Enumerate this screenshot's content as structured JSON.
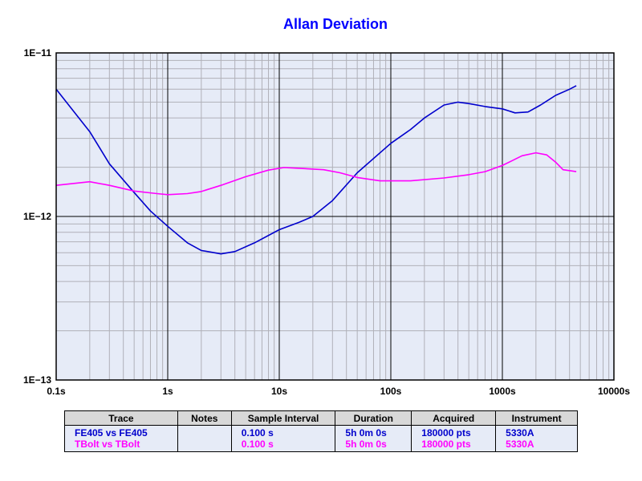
{
  "chart_data": {
    "type": "line",
    "title": "Allan Deviation",
    "title_color": "#0000ff",
    "x_scale": "log",
    "y_scale": "log",
    "xlim": [
      0.1,
      10000
    ],
    "ylim": [
      1e-13,
      1e-11
    ],
    "x_tick_values": [
      0.1,
      1,
      10,
      100,
      1000,
      10000
    ],
    "x_tick_labels": [
      "0.1s",
      "1s",
      "10s",
      "100s",
      "1000s",
      "10000s"
    ],
    "y_tick_values": [
      1e-13,
      1e-12,
      1e-11
    ],
    "y_tick_labels": [
      "1E−13",
      "1E−12",
      "1E−11"
    ],
    "grid": true,
    "plot_background": "#e6ebf7",
    "series": [
      {
        "name": "FE405 vs FE405",
        "color": "#0000cc",
        "points": [
          [
            0.1,
            6e-12
          ],
          [
            0.2,
            3.3e-12
          ],
          [
            0.3,
            2.1e-12
          ],
          [
            0.5,
            1.4e-12
          ],
          [
            0.7,
            1.08e-12
          ],
          [
            1.0,
            8.7e-13
          ],
          [
            1.5,
            6.9e-13
          ],
          [
            2.0,
            6.2e-13
          ],
          [
            3.0,
            5.9e-13
          ],
          [
            4.0,
            6.1e-13
          ],
          [
            6.0,
            6.9e-13
          ],
          [
            10.0,
            8.3e-13
          ],
          [
            15.0,
            9.2e-13
          ],
          [
            20.0,
            1e-12
          ],
          [
            30.0,
            1.25e-12
          ],
          [
            50.0,
            1.85e-12
          ],
          [
            100.0,
            2.8e-12
          ],
          [
            150.0,
            3.4e-12
          ],
          [
            200.0,
            4e-12
          ],
          [
            300.0,
            4.8e-12
          ],
          [
            400.0,
            5e-12
          ],
          [
            500.0,
            4.9e-12
          ],
          [
            700.0,
            4.7e-12
          ],
          [
            1000.0,
            4.55e-12
          ],
          [
            1300.0,
            4.3e-12
          ],
          [
            1700.0,
            4.35e-12
          ],
          [
            2200.0,
            4.8e-12
          ],
          [
            3000.0,
            5.5e-12
          ],
          [
            4000.0,
            6e-12
          ],
          [
            4600.0,
            6.3e-12
          ]
        ]
      },
      {
        "name": "TBolt vs TBolt",
        "color": "#ff00ff",
        "points": [
          [
            0.1,
            1.55e-12
          ],
          [
            0.2,
            1.63e-12
          ],
          [
            0.3,
            1.55e-12
          ],
          [
            0.5,
            1.43e-12
          ],
          [
            0.8,
            1.38e-12
          ],
          [
            1.0,
            1.36e-12
          ],
          [
            1.5,
            1.38e-12
          ],
          [
            2.0,
            1.42e-12
          ],
          [
            3.0,
            1.55e-12
          ],
          [
            5.0,
            1.75e-12
          ],
          [
            8.0,
            1.92e-12
          ],
          [
            11.0,
            1.99e-12
          ],
          [
            15.0,
            1.97e-12
          ],
          [
            25.0,
            1.93e-12
          ],
          [
            35.0,
            1.85e-12
          ],
          [
            50.0,
            1.73e-12
          ],
          [
            80.0,
            1.65e-12
          ],
          [
            150.0,
            1.65e-12
          ],
          [
            300.0,
            1.72e-12
          ],
          [
            500.0,
            1.8e-12
          ],
          [
            700.0,
            1.88e-12
          ],
          [
            1000.0,
            2.05e-12
          ],
          [
            1500.0,
            2.35e-12
          ],
          [
            2000.0,
            2.45e-12
          ],
          [
            2500.0,
            2.38e-12
          ],
          [
            3000.0,
            2.15e-12
          ],
          [
            3500.0,
            1.93e-12
          ],
          [
            4600.0,
            1.88e-12
          ]
        ]
      }
    ]
  },
  "legend": {
    "headers": [
      "Trace",
      "Notes",
      "Sample Interval",
      "Duration",
      "Acquired",
      "Instrument"
    ],
    "rows": [
      {
        "trace": "FE405 vs FE405",
        "notes": "",
        "interval": "0.100 s",
        "duration": "5h 0m 0s",
        "acquired": "180000 pts",
        "instrument": "5330A",
        "color": "#0000cc"
      },
      {
        "trace": "TBolt vs TBolt",
        "notes": "",
        "interval": "0.100 s",
        "duration": "5h 0m 0s",
        "acquired": "180000 pts",
        "instrument": "5330A",
        "color": "#ff00ff"
      }
    ]
  }
}
